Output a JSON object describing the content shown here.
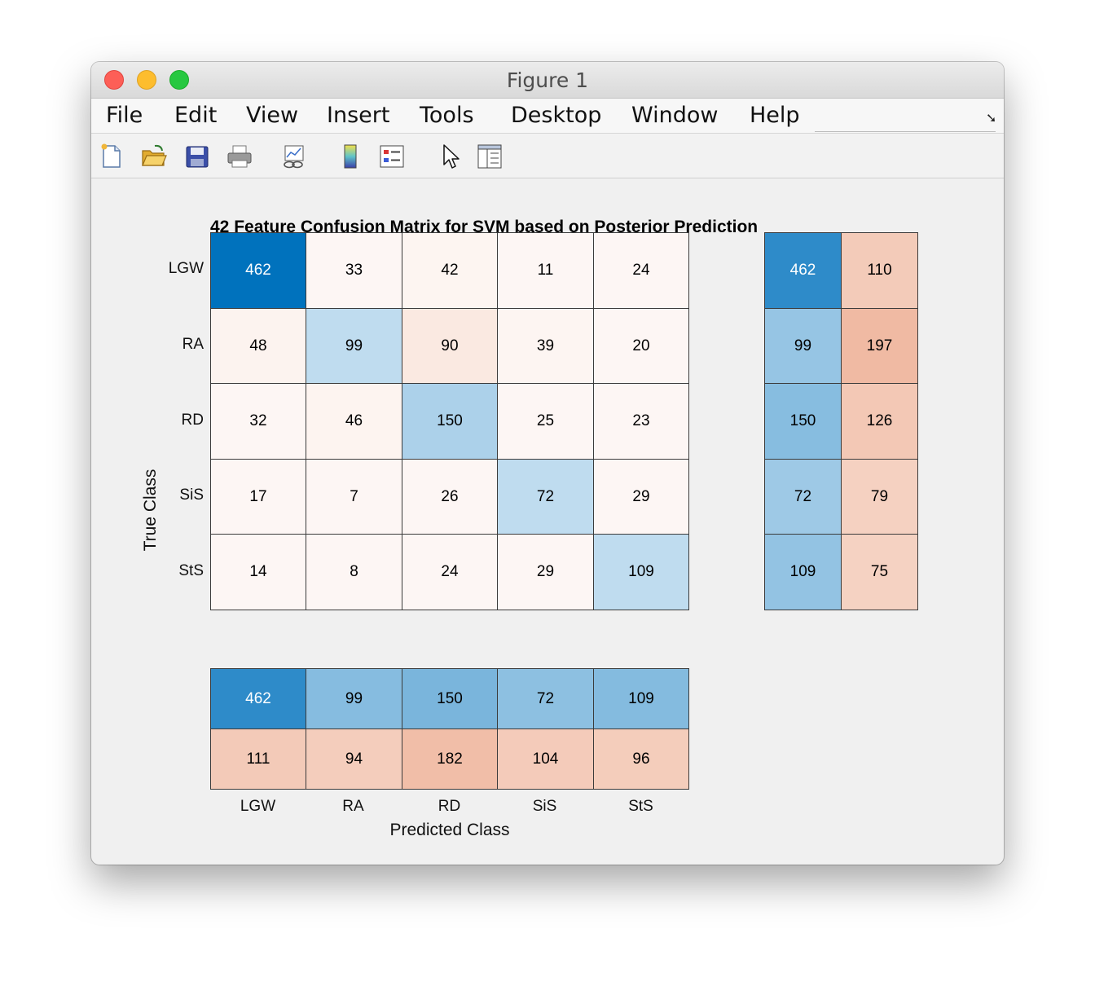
{
  "window": {
    "title": "Figure 1"
  },
  "menu": [
    "File",
    "Edit",
    "View",
    "Insert",
    "Tools",
    "Desktop",
    "Window",
    "Help"
  ],
  "toolbar": [
    "new-file-icon",
    "open-folder-icon",
    "save-icon",
    "print-icon",
    "link-plot-icon",
    "colorbar-icon",
    "legend-icon",
    "pointer-icon",
    "property-editor-icon"
  ],
  "chart_data": {
    "type": "heatmap",
    "title": "42 Feature Confusion Matrix for SVM based on Posterior Prediction",
    "xlabel": "Predicted Class",
    "ylabel": "True Class",
    "classes": [
      "LGW",
      "RA",
      "RD",
      "SiS",
      "StS"
    ],
    "matrix": [
      [
        462,
        33,
        42,
        11,
        24
      ],
      [
        48,
        99,
        90,
        39,
        20
      ],
      [
        32,
        46,
        150,
        25,
        23
      ],
      [
        17,
        7,
        26,
        72,
        29
      ],
      [
        14,
        8,
        24,
        29,
        109
      ]
    ],
    "row_summary": [
      [
        462,
        110
      ],
      [
        99,
        197
      ],
      [
        150,
        126
      ],
      [
        72,
        79
      ],
      [
        109,
        75
      ]
    ],
    "column_summary": [
      [
        462,
        99,
        150,
        72,
        109
      ],
      [
        111,
        94,
        182,
        104,
        96
      ]
    ],
    "colors": {
      "correct": "#0072bd",
      "incorrect": "#d95319",
      "low": "#ffffff"
    }
  }
}
